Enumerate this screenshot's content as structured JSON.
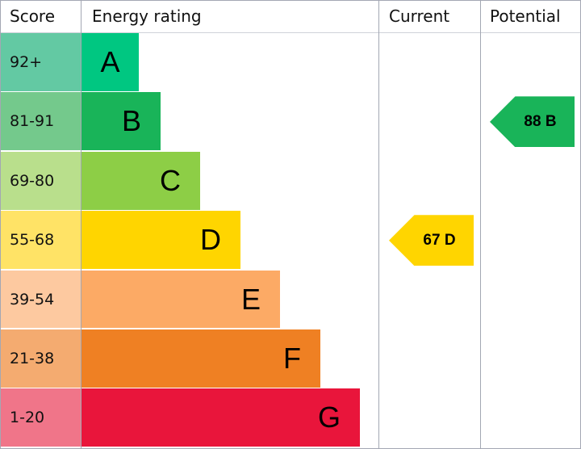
{
  "chart_data": {
    "type": "bar",
    "headers": {
      "score": "Score",
      "rating": "Energy rating",
      "current": "Current",
      "potential": "Potential"
    },
    "bands": [
      {
        "letter": "A",
        "range": "92+",
        "color": "#00c781",
        "score_color": "#63c9a3"
      },
      {
        "letter": "B",
        "range": "81-91",
        "color": "#19b459",
        "score_color": "#74c98c"
      },
      {
        "letter": "C",
        "range": "69-80",
        "color": "#8dce46",
        "score_color": "#b9df8c"
      },
      {
        "letter": "D",
        "range": "55-68",
        "color": "#ffd500",
        "score_color": "#ffe366"
      },
      {
        "letter": "E",
        "range": "39-54",
        "color": "#fcaa65",
        "score_color": "#fdc9a0"
      },
      {
        "letter": "F",
        "range": "21-38",
        "color": "#ef8023",
        "score_color": "#f4ab70"
      },
      {
        "letter": "G",
        "range": "1-20",
        "color": "#e9153b",
        "score_color": "#f07589"
      }
    ],
    "current": {
      "label": "67 D",
      "value": 67,
      "band": "D"
    },
    "potential": {
      "label": "88 B",
      "value": 88,
      "band": "B"
    }
  }
}
